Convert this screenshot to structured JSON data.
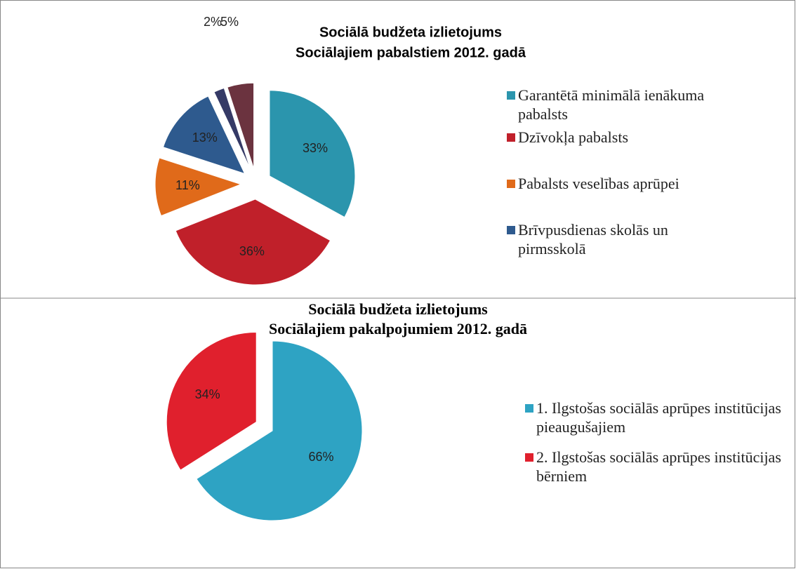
{
  "chart_data": [
    {
      "type": "pie",
      "title": [
        "Sociālā budžeta izlietojums",
        "Sociālajiem pabalstiem 2012. gadā"
      ],
      "categories": [
        "Garantētā minimālā ienākuma pabalsts",
        "Dzīvokļa pabalsts",
        "Pabalsts veselības aprūpei",
        "Brīvpusdienas skolās un pirmsskolā",
        null,
        null
      ],
      "values": [
        33,
        36,
        11,
        13,
        2,
        5
      ],
      "value_labels": [
        "33%",
        "36%",
        "11%",
        "13%",
        "2%",
        "5%"
      ],
      "colors": [
        "#2b95ad",
        "#c0202a",
        "#e06a1a",
        "#2e5a8e",
        "#353a66",
        "#6b333f"
      ]
    },
    {
      "type": "pie",
      "title": [
        "Sociālā budžeta izlietojums",
        "Sociālajiem pakalpojumiem 2012. gadā"
      ],
      "categories": [
        "1. Ilgstošas sociālās aprūpes institūcijas pieaugušajiem",
        "2. Ilgstošas sociālās aprūpes institūcijas bērniem"
      ],
      "values": [
        66,
        34
      ],
      "value_labels": [
        "66%",
        "34%"
      ],
      "colors": [
        "#2ea3c3",
        "#e0202d"
      ]
    }
  ]
}
